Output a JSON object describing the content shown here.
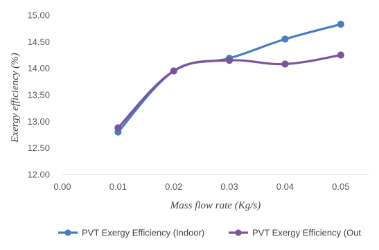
{
  "chart_data": {
    "type": "line",
    "x": [
      0.01,
      0.02,
      0.03,
      0.04,
      0.05
    ],
    "x_ticks": [
      "0.00",
      "0.01",
      "0.02",
      "0.03",
      "0.04",
      "0.05"
    ],
    "y_ticks": [
      "12.00",
      "12.50",
      "13.00",
      "13.50",
      "14.00",
      "14.50",
      "15.00"
    ],
    "xlim": [
      0.0,
      0.055
    ],
    "ylim": [
      12.0,
      15.0
    ],
    "xlabel": "Mass flow rate (Kg/s)",
    "ylabel": "Exergy efficiency (%)",
    "grid": false,
    "smooth": true,
    "legend_position": "bottom",
    "series": [
      {
        "name": "PVT Exergy Efficiency (Indoor)",
        "color": "#4a7ebb",
        "values": [
          12.8,
          13.95,
          14.19,
          14.55,
          14.83
        ]
      },
      {
        "name": "PVT Exergy Efficiency (Out",
        "color": "#7b559b",
        "values": [
          12.88,
          13.95,
          14.15,
          14.08,
          14.25
        ]
      }
    ]
  }
}
